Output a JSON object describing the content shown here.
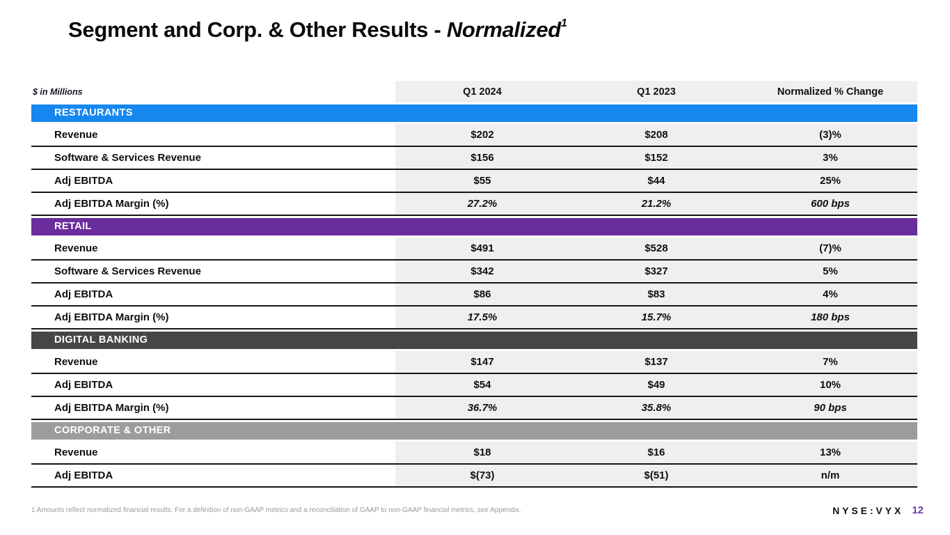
{
  "slide": {
    "title_main": "Segment and Corp. & Other Results - ",
    "title_emphasis": "Normalized",
    "title_superscript": "1",
    "units_label": "$ in Millions",
    "footnote": "1 Amounts reflect normalized financial results. For a definition of non-GAAP metrics and a reconciliation of GAAP to non-GAAP financial metrics, see Appendix.",
    "ticker": "NYSE:VYX",
    "page_number": "12"
  },
  "colors": {
    "restaurants_band": "#1787F0",
    "retail_band": "#6A2D9C",
    "digital_banking_band": "#464646",
    "corporate_band": "#9C9C9C",
    "data_cell_bg": "#EFEFEF",
    "page_number_accent": "#6E3FA3"
  },
  "table": {
    "columns": [
      "Q1 2024",
      "Q1 2023",
      "Normalized % Change"
    ],
    "sections": [
      {
        "name": "RESTAURANTS",
        "rows": [
          {
            "label": "Revenue",
            "values": [
              "$202",
              "$208",
              "(3)%"
            ]
          },
          {
            "label": "Software & Services Revenue",
            "values": [
              "$156",
              "$152",
              "3%"
            ]
          },
          {
            "label": "Adj EBITDA",
            "values": [
              "$55",
              "$44",
              "25%"
            ]
          },
          {
            "label": "Adj EBITDA Margin (%)",
            "values": [
              "27.2%",
              "21.2%",
              "600 bps"
            ]
          }
        ]
      },
      {
        "name": "RETAIL",
        "rows": [
          {
            "label": "Revenue",
            "values": [
              "$491",
              "$528",
              "(7)%"
            ]
          },
          {
            "label": "Software & Services Revenue",
            "values": [
              "$342",
              "$327",
              "5%"
            ]
          },
          {
            "label": "Adj EBITDA",
            "values": [
              "$86",
              "$83",
              "4%"
            ]
          },
          {
            "label": "Adj EBITDA Margin (%)",
            "values": [
              "17.5%",
              "15.7%",
              "180 bps"
            ]
          }
        ]
      },
      {
        "name": "DIGITAL BANKING",
        "rows": [
          {
            "label": "Revenue",
            "values": [
              "$147",
              "$137",
              "7%"
            ]
          },
          {
            "label": "Adj EBITDA",
            "values": [
              "$54",
              "$49",
              "10%"
            ]
          },
          {
            "label": "Adj EBITDA Margin (%)",
            "values": [
              "36.7%",
              "35.8%",
              "90 bps"
            ]
          }
        ]
      },
      {
        "name": "CORPORATE & OTHER",
        "rows": [
          {
            "label": "Revenue",
            "values": [
              "$18",
              "$16",
              "13%"
            ]
          },
          {
            "label": "Adj EBITDA",
            "values": [
              "$(73)",
              "$(51)",
              "n/m"
            ]
          }
        ]
      }
    ]
  }
}
